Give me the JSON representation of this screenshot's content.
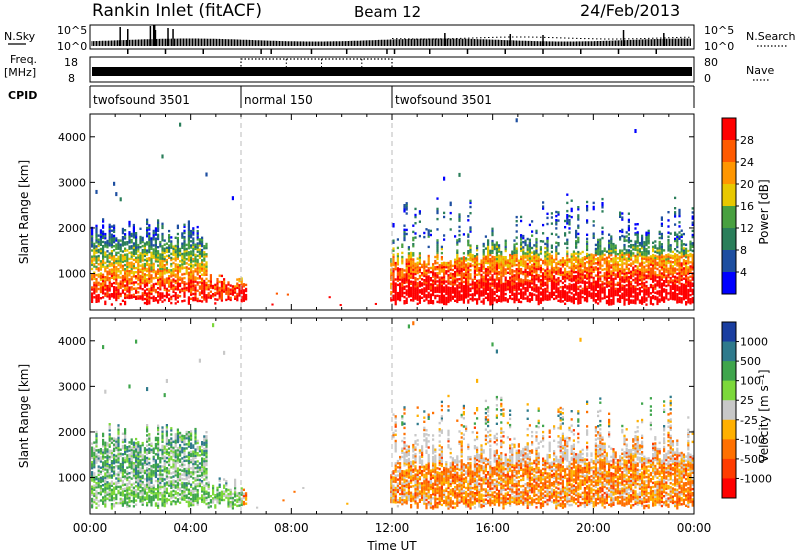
{
  "header": {
    "station": "Rankin Inlet (fitACF)",
    "beam": "Beam 12",
    "date": "24/Feb/2013"
  },
  "strips": {
    "nsky_label": "N.Sky",
    "nsky_ticks": [
      "10^5",
      "10^0"
    ],
    "nsearch_label": "N.Search",
    "nsearch_ticks": [
      "10^5",
      "10^0"
    ],
    "freq_label_1": "Freq.",
    "freq_label_2": "[MHz]",
    "freq_ticks": [
      "18",
      "8"
    ],
    "nave_label": "Nave",
    "nave_ticks": [
      "80",
      "0"
    ],
    "cpid_label": "CPID",
    "cpid_segments": [
      {
        "label": "twofsound 3501",
        "start_hour": 0,
        "end_hour": 6
      },
      {
        "label": "normal 150",
        "start_hour": 6,
        "end_hour": 12
      },
      {
        "label": "twofsound 3501",
        "start_hour": 12,
        "end_hour": 24
      }
    ]
  },
  "chart_data": [
    {
      "type": "heatmap",
      "panel": "power",
      "ylabel": "Slant Range [km]",
      "xrange_hours": [
        0,
        24
      ],
      "ylim": [
        200,
        4500
      ],
      "yticks": [
        1000,
        2000,
        3000,
        4000
      ],
      "colorbar_label": "Power [dB]",
      "colorbar_ticks": [
        "28",
        "24",
        "20",
        "16",
        "12",
        "8",
        "4"
      ],
      "colorbar_colors": [
        "#ff0000",
        "#ff5a00",
        "#ff9600",
        "#e8c800",
        "#48a040",
        "#2a7e5a",
        "#1d4ea0",
        "#0000ff"
      ],
      "scatter_regions": [
        {
          "hours": [
            0.0,
            4.5
          ],
          "range_km": [
            500,
            2100
          ],
          "level": 0.6
        },
        {
          "hours": [
            1.0,
            4.5
          ],
          "range_km": [
            200,
            900
          ],
          "level": 0.7
        },
        {
          "hours": [
            12.0,
            24.0
          ],
          "range_km": [
            300,
            1600
          ],
          "level": 0.8
        },
        {
          "hours": [
            12.0,
            24.0
          ],
          "range_km": [
            1400,
            2900
          ],
          "level": 0.25
        }
      ],
      "dividers_hours": [
        6,
        12
      ]
    },
    {
      "type": "heatmap",
      "panel": "velocity",
      "ylabel": "Slant Range [km]",
      "xlabel": "Time UT",
      "xrange_hours": [
        0,
        24
      ],
      "ylim": [
        200,
        4500
      ],
      "yticks": [
        1000,
        2000,
        3000,
        4000
      ],
      "xticks": [
        "00:00",
        "04:00",
        "08:00",
        "12:00",
        "16:00",
        "20:00",
        "00:00"
      ],
      "colorbar_label": "Velocity [m s⁻¹]",
      "colorbar_ticks": [
        "1000",
        "500",
        "100",
        "25",
        "-25",
        "-100",
        "-500",
        "-1000"
      ],
      "colorbar_colors": [
        "#1a3ea0",
        "#2f7a8c",
        "#3fa54c",
        "#7cd83a",
        "#c8c8c8",
        "#ffb000",
        "#ff7000",
        "#ff3c00",
        "#ff0000"
      ],
      "scatter_regions": [
        {
          "hours": [
            0.0,
            4.5
          ],
          "range_km": [
            500,
            2100
          ],
          "level": 0.6
        },
        {
          "hours": [
            12.0,
            24.0
          ],
          "range_km": [
            300,
            1500
          ],
          "level": 0.8
        },
        {
          "hours": [
            12.0,
            24.0
          ],
          "range_km": [
            1400,
            2900
          ],
          "level": 0.25
        }
      ],
      "dividers_hours": [
        6,
        12
      ]
    }
  ]
}
